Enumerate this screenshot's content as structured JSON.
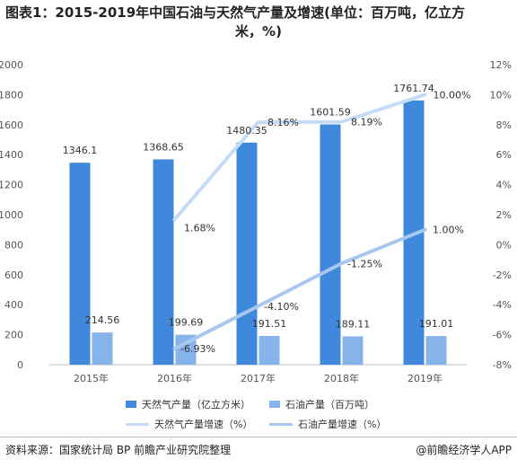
{
  "title_line1": "图表1：2015-2019年中国石油与天然气产量及增速(单位：百万吨，亿立方",
  "title_line2": "米，%)",
  "source": "资料来源：国家统计局 BP 前瞻产业研究院整理",
  "credit": "@前瞻经济学人APP",
  "colors": {
    "gas_bar": "#3f88dc",
    "oil_bar": "#86b3ea",
    "gas_growth": "#c6dcf6",
    "oil_growth": "#a9c8ef"
  },
  "chart_data": {
    "type": "bar",
    "categories": [
      "2015年",
      "2016年",
      "2017年",
      "2018年",
      "2019年"
    ],
    "y_left": {
      "min": 0,
      "max": 2000,
      "step": 200,
      "ticks": [
        "0",
        "200",
        "400",
        "600",
        "800",
        "1000",
        "1200",
        "1400",
        "1600",
        "1800",
        "2000"
      ]
    },
    "y_right": {
      "min": -8,
      "max": 12,
      "step": 2,
      "ticks": [
        "-8%",
        "-6%",
        "-4%",
        "-2%",
        "0%",
        "2%",
        "4%",
        "6%",
        "8%",
        "10%",
        "12%"
      ]
    },
    "series": [
      {
        "name": "天然气产量（亿立方米）",
        "kind": "bar",
        "axis": "left",
        "values": [
          1346.1,
          1368.65,
          1480.35,
          1601.59,
          1761.74
        ],
        "labels": [
          "1346.1",
          "1368.65",
          "1480.35",
          "1601.59",
          "1761.74"
        ]
      },
      {
        "name": "石油产量（百万吨）",
        "kind": "bar",
        "axis": "left",
        "values": [
          214.56,
          199.69,
          191.51,
          189.11,
          191.01
        ],
        "labels": [
          "214.56",
          "199.69",
          "191.51",
          "189.11",
          "191.01"
        ]
      },
      {
        "name": "天然气产量增速（%）",
        "kind": "line",
        "axis": "right",
        "values": [
          null,
          1.68,
          8.16,
          8.19,
          10.0
        ],
        "labels": [
          "",
          "1.68%",
          "8.16%",
          "8.19%",
          "10.00%"
        ]
      },
      {
        "name": "石油产量增速（%）",
        "kind": "line",
        "axis": "right",
        "values": [
          null,
          -6.93,
          -4.1,
          -1.25,
          1.0
        ],
        "labels": [
          "",
          "-6.93%",
          "-4.10%",
          "-1.25%",
          "1.00%"
        ]
      }
    ],
    "legend_position": "bottom",
    "grid": false
  }
}
